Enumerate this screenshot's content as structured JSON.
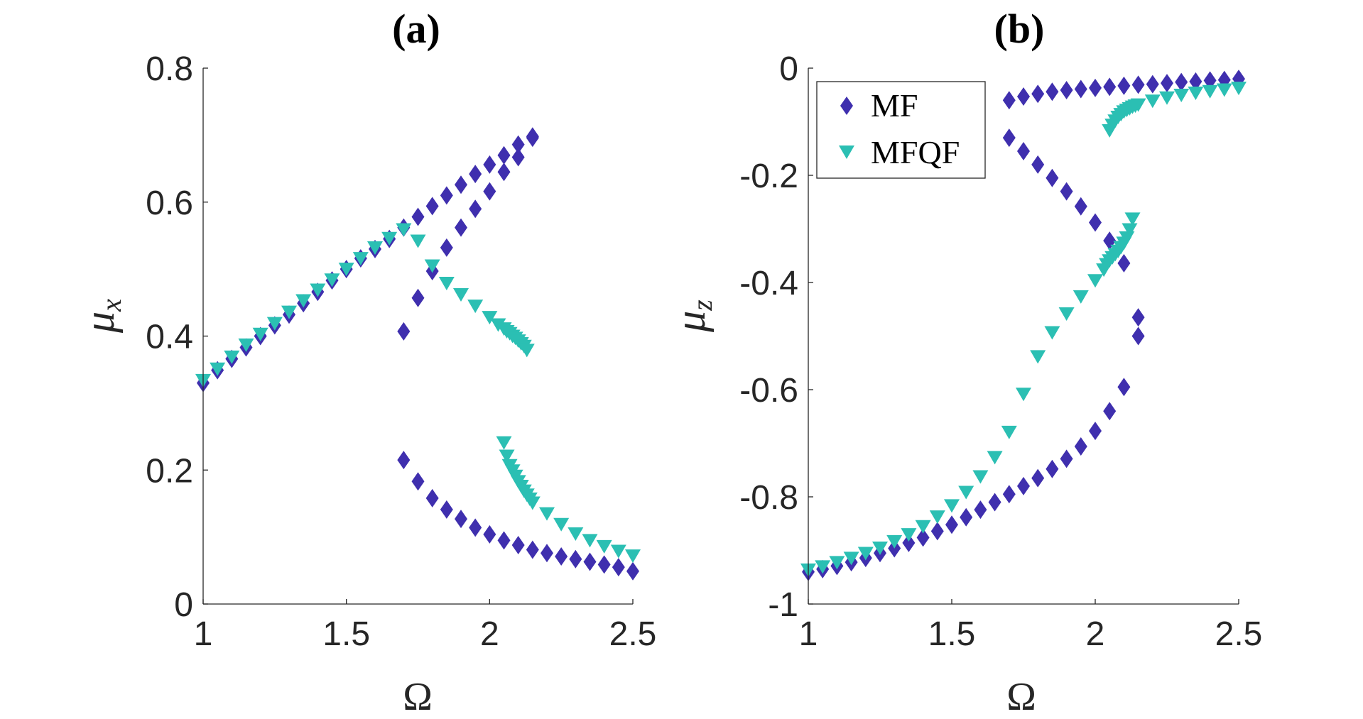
{
  "chart_data": [
    {
      "type": "scatter",
      "title": "(a)",
      "xlabel": "Ω",
      "ylabel": "μ",
      "ylabel_subscript": "x",
      "xlim": [
        1,
        2.5
      ],
      "ylim": [
        0,
        0.8
      ],
      "xticks": [
        1,
        1.5,
        2,
        2.5
      ],
      "xtick_labels": [
        "1",
        "1.5",
        "2",
        "2.5"
      ],
      "yticks": [
        0,
        0.2,
        0.4,
        0.6,
        0.8
      ],
      "ytick_labels": [
        "0",
        "0.2",
        "0.4",
        "0.6",
        "0.8"
      ],
      "series": [
        {
          "name": "MF",
          "marker": "diamond",
          "color": "#3f2fae",
          "points": [
            [
              1.0,
              0.33
            ],
            [
              1.05,
              0.349
            ],
            [
              1.1,
              0.366
            ],
            [
              1.15,
              0.383
            ],
            [
              1.2,
              0.4
            ],
            [
              1.25,
              0.416
            ],
            [
              1.3,
              0.432
            ],
            [
              1.35,
              0.449
            ],
            [
              1.4,
              0.466
            ],
            [
              1.45,
              0.483
            ],
            [
              1.5,
              0.5
            ],
            [
              1.55,
              0.516
            ],
            [
              1.6,
              0.53
            ],
            [
              1.65,
              0.545
            ],
            [
              1.7,
              0.562
            ],
            [
              1.75,
              0.578
            ],
            [
              1.8,
              0.594
            ],
            [
              1.85,
              0.61
            ],
            [
              1.9,
              0.626
            ],
            [
              1.95,
              0.642
            ],
            [
              2.0,
              0.656
            ],
            [
              2.05,
              0.67
            ],
            [
              2.1,
              0.686
            ],
            [
              2.15,
              0.698
            ],
            [
              1.7,
              0.407
            ],
            [
              1.75,
              0.457
            ],
            [
              1.8,
              0.497
            ],
            [
              1.85,
              0.532
            ],
            [
              1.9,
              0.562
            ],
            [
              1.95,
              0.59
            ],
            [
              2.0,
              0.616
            ],
            [
              2.05,
              0.645
            ],
            [
              2.1,
              0.667
            ],
            [
              2.15,
              0.696
            ],
            [
              1.7,
              0.215
            ],
            [
              1.75,
              0.183
            ],
            [
              1.8,
              0.158
            ],
            [
              1.85,
              0.141
            ],
            [
              1.9,
              0.127
            ],
            [
              1.95,
              0.114
            ],
            [
              2.0,
              0.104
            ],
            [
              2.05,
              0.095
            ],
            [
              2.1,
              0.088
            ],
            [
              2.15,
              0.081
            ],
            [
              2.2,
              0.076
            ],
            [
              2.25,
              0.071
            ],
            [
              2.3,
              0.067
            ],
            [
              2.35,
              0.063
            ],
            [
              2.4,
              0.059
            ],
            [
              2.45,
              0.055
            ],
            [
              2.5,
              0.049
            ]
          ]
        },
        {
          "name": "MFQF",
          "marker": "triangle-down",
          "color": "#2bbfb3",
          "points": [
            [
              1.0,
              0.335
            ],
            [
              1.05,
              0.352
            ],
            [
              1.1,
              0.37
            ],
            [
              1.15,
              0.388
            ],
            [
              1.2,
              0.404
            ],
            [
              1.25,
              0.42
            ],
            [
              1.3,
              0.437
            ],
            [
              1.35,
              0.454
            ],
            [
              1.4,
              0.47
            ],
            [
              1.45,
              0.485
            ],
            [
              1.5,
              0.501
            ],
            [
              1.55,
              0.517
            ],
            [
              1.6,
              0.533
            ],
            [
              1.65,
              0.547
            ],
            [
              1.7,
              0.56
            ],
            [
              1.75,
              0.543
            ],
            [
              1.8,
              0.506
            ],
            [
              1.85,
              0.48
            ],
            [
              1.9,
              0.463
            ],
            [
              1.95,
              0.446
            ],
            [
              2.0,
              0.429
            ],
            [
              2.03,
              0.418
            ],
            [
              2.05,
              0.412
            ],
            [
              2.06,
              0.408
            ],
            [
              2.07,
              0.405
            ],
            [
              2.08,
              0.401
            ],
            [
              2.09,
              0.398
            ],
            [
              2.1,
              0.394
            ],
            [
              2.11,
              0.39
            ],
            [
              2.12,
              0.386
            ],
            [
              2.13,
              0.38
            ],
            [
              2.05,
              0.242
            ],
            [
              2.06,
              0.222
            ],
            [
              2.07,
              0.208
            ],
            [
              2.08,
              0.2
            ],
            [
              2.09,
              0.192
            ],
            [
              2.1,
              0.184
            ],
            [
              2.11,
              0.177
            ],
            [
              2.12,
              0.17
            ],
            [
              2.13,
              0.164
            ],
            [
              2.14,
              0.158
            ],
            [
              2.15,
              0.152
            ],
            [
              2.2,
              0.136
            ],
            [
              2.25,
              0.12
            ],
            [
              2.3,
              0.106
            ],
            [
              2.35,
              0.096
            ],
            [
              2.4,
              0.087
            ],
            [
              2.45,
              0.08
            ],
            [
              2.5,
              0.073
            ]
          ]
        }
      ]
    },
    {
      "type": "scatter",
      "title": "(b)",
      "xlabel": "Ω",
      "ylabel": "μ",
      "ylabel_subscript": "z",
      "xlim": [
        1,
        2.5
      ],
      "ylim": [
        -1,
        0
      ],
      "xticks": [
        1,
        1.5,
        2,
        2.5
      ],
      "xtick_labels": [
        "1",
        "1.5",
        "2",
        "2.5"
      ],
      "yticks": [
        0,
        -0.2,
        -0.4,
        -0.6,
        -0.8,
        -1
      ],
      "ytick_labels": [
        "0",
        "-0.2",
        "-0.4",
        "-0.6",
        "-0.8",
        "-1"
      ],
      "legend": {
        "position": "top-left",
        "entries": [
          "MF",
          "MFQF"
        ]
      },
      "series": [
        {
          "name": "MF",
          "marker": "diamond",
          "color": "#3f2fae",
          "points": [
            [
              1.7,
              -0.06
            ],
            [
              1.75,
              -0.053
            ],
            [
              1.8,
              -0.048
            ],
            [
              1.85,
              -0.044
            ],
            [
              1.9,
              -0.041
            ],
            [
              1.95,
              -0.039
            ],
            [
              2.0,
              -0.037
            ],
            [
              2.05,
              -0.035
            ],
            [
              2.1,
              -0.033
            ],
            [
              2.15,
              -0.031
            ],
            [
              2.2,
              -0.03
            ],
            [
              2.25,
              -0.028
            ],
            [
              2.3,
              -0.026
            ],
            [
              2.35,
              -0.025
            ],
            [
              2.4,
              -0.023
            ],
            [
              2.45,
              -0.022
            ],
            [
              2.5,
              -0.02
            ],
            [
              1.7,
              -0.13
            ],
            [
              1.75,
              -0.155
            ],
            [
              1.8,
              -0.18
            ],
            [
              1.85,
              -0.205
            ],
            [
              1.9,
              -0.23
            ],
            [
              1.95,
              -0.258
            ],
            [
              2.0,
              -0.288
            ],
            [
              2.05,
              -0.322
            ],
            [
              2.1,
              -0.364
            ],
            [
              2.15,
              -0.465
            ],
            [
              2.15,
              -0.5
            ],
            [
              1.0,
              -0.94
            ],
            [
              1.05,
              -0.935
            ],
            [
              1.1,
              -0.929
            ],
            [
              1.15,
              -0.922
            ],
            [
              1.2,
              -0.914
            ],
            [
              1.25,
              -0.905
            ],
            [
              1.3,
              -0.896
            ],
            [
              1.35,
              -0.886
            ],
            [
              1.4,
              -0.876
            ],
            [
              1.45,
              -0.864
            ],
            [
              1.5,
              -0.852
            ],
            [
              1.55,
              -0.838
            ],
            [
              1.6,
              -0.824
            ],
            [
              1.65,
              -0.81
            ],
            [
              1.7,
              -0.795
            ],
            [
              1.75,
              -0.78
            ],
            [
              1.8,
              -0.765
            ],
            [
              1.85,
              -0.748
            ],
            [
              1.9,
              -0.729
            ],
            [
              1.95,
              -0.706
            ],
            [
              2.0,
              -0.677
            ],
            [
              2.05,
              -0.64
            ],
            [
              2.1,
              -0.595
            ]
          ]
        },
        {
          "name": "MFQF",
          "marker": "triangle-down",
          "color": "#2bbfb3",
          "points": [
            [
              1.0,
              -0.935
            ],
            [
              1.05,
              -0.929
            ],
            [
              1.1,
              -0.921
            ],
            [
              1.15,
              -0.913
            ],
            [
              1.2,
              -0.904
            ],
            [
              1.25,
              -0.894
            ],
            [
              1.3,
              -0.882
            ],
            [
              1.35,
              -0.869
            ],
            [
              1.4,
              -0.854
            ],
            [
              1.45,
              -0.836
            ],
            [
              1.5,
              -0.815
            ],
            [
              1.55,
              -0.79
            ],
            [
              1.6,
              -0.761
            ],
            [
              1.65,
              -0.725
            ],
            [
              1.7,
              -0.678
            ],
            [
              1.75,
              -0.607
            ],
            [
              1.8,
              -0.537
            ],
            [
              1.85,
              -0.492
            ],
            [
              1.9,
              -0.457
            ],
            [
              1.95,
              -0.425
            ],
            [
              2.0,
              -0.395
            ],
            [
              2.03,
              -0.375
            ],
            [
              2.04,
              -0.365
            ],
            [
              2.05,
              -0.358
            ],
            [
              2.06,
              -0.352
            ],
            [
              2.07,
              -0.346
            ],
            [
              2.08,
              -0.34
            ],
            [
              2.09,
              -0.333
            ],
            [
              2.1,
              -0.325
            ],
            [
              2.11,
              -0.315
            ],
            [
              2.12,
              -0.3
            ],
            [
              2.13,
              -0.28
            ],
            [
              2.05,
              -0.115
            ],
            [
              2.06,
              -0.105
            ],
            [
              2.07,
              -0.097
            ],
            [
              2.08,
              -0.09
            ],
            [
              2.09,
              -0.085
            ],
            [
              2.1,
              -0.08
            ],
            [
              2.11,
              -0.077
            ],
            [
              2.12,
              -0.074
            ],
            [
              2.13,
              -0.071
            ],
            [
              2.14,
              -0.069
            ],
            [
              2.15,
              -0.067
            ],
            [
              2.2,
              -0.06
            ],
            [
              2.25,
              -0.054
            ],
            [
              2.3,
              -0.049
            ],
            [
              2.35,
              -0.045
            ],
            [
              2.4,
              -0.042
            ],
            [
              2.45,
              -0.039
            ],
            [
              2.5,
              -0.036
            ]
          ]
        }
      ]
    }
  ]
}
